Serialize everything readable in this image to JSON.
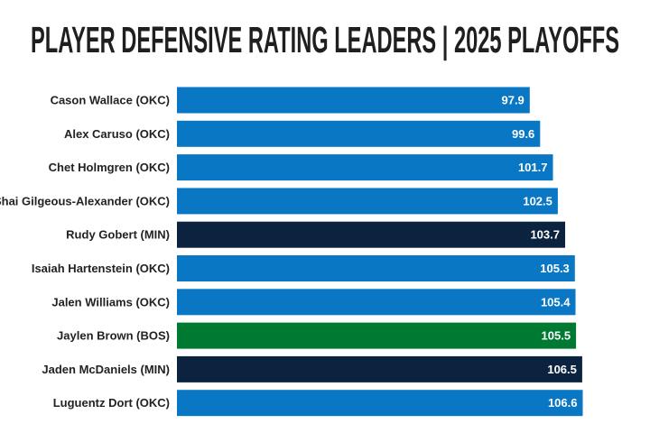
{
  "chart_data": {
    "type": "bar",
    "orientation": "horizontal",
    "title": "PLAYER DEFENSIVE RATING LEADERS | 2025 PLAYOFFS",
    "categories": [
      "Cason Wallace (OKC)",
      "Alex Caruso (OKC)",
      "Chet Holmgren (OKC)",
      "Shai Gilgeous-Alexander (OKC)",
      "Rudy Gobert (MIN)",
      "Isaiah Hartenstein (OKC)",
      "Jalen Williams (OKC)",
      "Jaylen Brown (BOS)",
      "Jaden McDaniels (MIN)",
      "Luguentz Dort (OKC)"
    ],
    "values": [
      97.9,
      99.6,
      101.7,
      102.5,
      103.7,
      105.3,
      105.4,
      105.5,
      106.5,
      106.6
    ],
    "value_labels": [
      "97.9",
      "99.6",
      "101.7",
      "102.5",
      "103.7",
      "105.3",
      "105.4",
      "105.5",
      "106.5",
      "106.6"
    ],
    "bar_colors": [
      "#0a77c4",
      "#0a77c4",
      "#0a77c4",
      "#0a77c4",
      "#0c2340",
      "#0a77c4",
      "#0a77c4",
      "#007a33",
      "#0c2340",
      "#0a77c4"
    ],
    "xlim": [
      40,
      108
    ],
    "grid": false,
    "axes_visible": false,
    "data_labels": "inside-end"
  }
}
